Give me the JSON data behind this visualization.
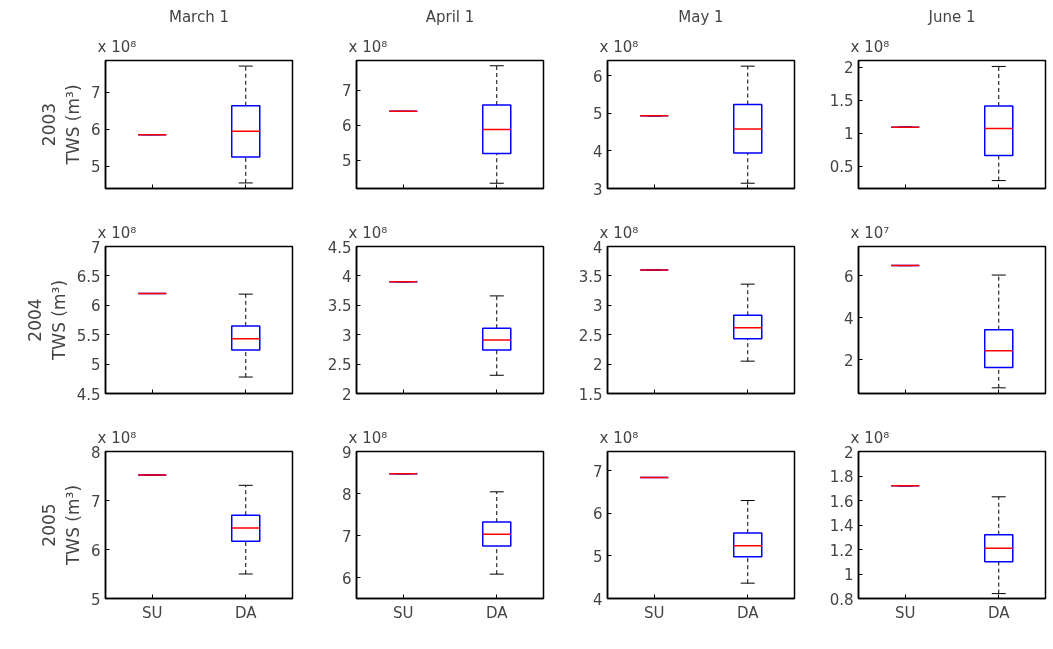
{
  "chart_data": [
    {
      "type": "box",
      "title": "March 1",
      "ylabel": "2003\nTWS (m³)",
      "annotations": [
        "x 10⁸"
      ],
      "categories": [
        null,
        null
      ],
      "tick_labels": "y",
      "ylim": [
        4.4,
        7.85
      ],
      "yticks": [
        5,
        6,
        7
      ],
      "series": [
        {
          "color": "#0000ff",
          "boxes": [
            {
              "low": 5.85,
              "q1": 5.85,
              "median": 5.85,
              "q3": 5.85,
              "high": 5.85
            },
            {
              "low": 4.55,
              "q1": 5.25,
              "median": 5.94,
              "q3": 6.63,
              "high": 7.7
            }
          ]
        }
      ]
    },
    {
      "type": "box",
      "title": "April 1",
      "annotations": [
        "x 10⁸"
      ],
      "categories": [
        null,
        null
      ],
      "tick_labels": "y",
      "ylim": [
        4.2,
        7.85
      ],
      "yticks": [
        5,
        6,
        7
      ],
      "series": [
        {
          "color": "#0000ff",
          "boxes": [
            {
              "low": 6.4,
              "q1": 6.4,
              "median": 6.4,
              "q3": 6.4,
              "high": 6.4
            },
            {
              "low": 4.35,
              "q1": 5.2,
              "median": 5.88,
              "q3": 6.58,
              "high": 7.7
            }
          ]
        }
      ]
    },
    {
      "type": "box",
      "title": "May 1",
      "annotations": [
        "x 10⁸"
      ],
      "categories": [
        null,
        null
      ],
      "tick_labels": "y",
      "ylim": [
        3,
        6.4
      ],
      "yticks": [
        3,
        4,
        5,
        6
      ],
      "series": [
        {
          "color": "#0000ff",
          "boxes": [
            {
              "low": 4.93,
              "q1": 4.93,
              "median": 4.93,
              "q3": 4.93,
              "high": 4.93
            },
            {
              "low": 3.14,
              "q1": 3.94,
              "median": 4.58,
              "q3": 5.23,
              "high": 6.25
            }
          ]
        }
      ]
    },
    {
      "type": "box",
      "title": "June 1",
      "annotations": [
        "x 10⁸"
      ],
      "categories": [
        null,
        null
      ],
      "tick_labels": "y",
      "ylim": [
        0.16,
        2.1
      ],
      "yticks": [
        0.5,
        1,
        1.5,
        2
      ],
      "series": [
        {
          "color": "#0000ff",
          "boxes": [
            {
              "low": 1.09,
              "q1": 1.09,
              "median": 1.09,
              "q3": 1.09,
              "high": 1.09
            },
            {
              "low": 0.28,
              "q1": 0.66,
              "median": 1.07,
              "q3": 1.41,
              "high": 2.01
            }
          ]
        }
      ]
    },
    {
      "type": "box",
      "ylabel": "2004\nTWS (m³)",
      "annotations": [
        "x 10⁸"
      ],
      "categories": [
        null,
        null
      ],
      "tick_labels": "y",
      "ylim": [
        4.5,
        7
      ],
      "yticks": [
        4.5,
        5,
        5.5,
        6,
        6.5,
        7
      ],
      "series": [
        {
          "color": "#0000ff",
          "boxes": [
            {
              "low": 6.2,
              "q1": 6.2,
              "median": 6.2,
              "q3": 6.2,
              "high": 6.2
            },
            {
              "low": 4.78,
              "q1": 5.24,
              "median": 5.43,
              "q3": 5.65,
              "high": 6.19
            }
          ]
        }
      ]
    },
    {
      "type": "box",
      "annotations": [
        "x 10⁸"
      ],
      "categories": [
        null,
        null
      ],
      "tick_labels": "y",
      "ylim": [
        2,
        4.5
      ],
      "yticks": [
        2,
        2.5,
        3,
        3.5,
        4,
        4.5
      ],
      "series": [
        {
          "color": "#0000ff",
          "boxes": [
            {
              "low": 3.9,
              "q1": 3.9,
              "median": 3.9,
              "q3": 3.9,
              "high": 3.9
            },
            {
              "low": 2.31,
              "q1": 2.74,
              "median": 2.91,
              "q3": 3.11,
              "high": 3.66
            }
          ]
        }
      ]
    },
    {
      "type": "box",
      "annotations": [
        "x 10⁸"
      ],
      "categories": [
        null,
        null
      ],
      "tick_labels": "y",
      "ylim": [
        1.5,
        4
      ],
      "yticks": [
        1.5,
        2,
        2.5,
        3,
        3.5,
        4
      ],
      "series": [
        {
          "color": "#0000ff",
          "boxes": [
            {
              "low": 3.6,
              "q1": 3.6,
              "median": 3.6,
              "q3": 3.6,
              "high": 3.6
            },
            {
              "low": 2.05,
              "q1": 2.43,
              "median": 2.62,
              "q3": 2.83,
              "high": 3.36
            }
          ]
        }
      ]
    },
    {
      "type": "box",
      "annotations": [
        "x 10⁷"
      ],
      "categories": [
        null,
        null
      ],
      "tick_labels": "y",
      "ylim": [
        0.4,
        7.4
      ],
      "yticks": [
        2,
        4,
        6
      ],
      "series": [
        {
          "color": "#0000ff",
          "boxes": [
            {
              "low": 6.49,
              "q1": 6.49,
              "median": 6.49,
              "q3": 6.49,
              "high": 6.49
            },
            {
              "low": 0.67,
              "q1": 1.64,
              "median": 2.43,
              "q3": 3.44,
              "high": 6.04
            }
          ]
        }
      ]
    },
    {
      "type": "box",
      "ylabel": "2005\nTWS (m³)",
      "annotations": [
        "x 10⁸"
      ],
      "categories": [
        "SU",
        "DA"
      ],
      "ylim": [
        5,
        8
      ],
      "yticks": [
        5,
        6,
        7,
        8
      ],
      "series": [
        {
          "color": "#0000ff",
          "boxes": [
            {
              "low": 7.52,
              "q1": 7.52,
              "median": 7.52,
              "q3": 7.52,
              "high": 7.52
            },
            {
              "low": 5.5,
              "q1": 6.17,
              "median": 6.44,
              "q3": 6.7,
              "high": 7.31
            }
          ]
        }
      ]
    },
    {
      "type": "box",
      "annotations": [
        "x 10⁸"
      ],
      "categories": [
        "SU",
        "DA"
      ],
      "ylim": [
        5.5,
        9
      ],
      "yticks": [
        6,
        7,
        8,
        9
      ],
      "series": [
        {
          "color": "#0000ff",
          "boxes": [
            {
              "low": 8.47,
              "q1": 8.47,
              "median": 8.47,
              "q3": 8.47,
              "high": 8.47
            },
            {
              "low": 6.08,
              "q1": 6.75,
              "median": 7.03,
              "q3": 7.32,
              "high": 8.04
            }
          ]
        }
      ]
    },
    {
      "type": "box",
      "annotations": [
        "x 10⁸"
      ],
      "categories": [
        "SU",
        "DA"
      ],
      "ylim": [
        4,
        7.45
      ],
      "yticks": [
        4,
        5,
        6,
        7
      ],
      "series": [
        {
          "color": "#0000ff",
          "boxes": [
            {
              "low": 6.84,
              "q1": 6.84,
              "median": 6.84,
              "q3": 6.84,
              "high": 6.84
            },
            {
              "low": 4.36,
              "q1": 4.98,
              "median": 5.24,
              "q3": 5.54,
              "high": 6.3
            }
          ]
        }
      ]
    },
    {
      "type": "box",
      "annotations": [
        "x 10⁸"
      ],
      "categories": [
        "SU",
        "DA"
      ],
      "ylim": [
        0.8,
        2
      ],
      "yticks": [
        0.8,
        1,
        1.2,
        1.4,
        1.6,
        1.8,
        2
      ],
      "series": [
        {
          "color": "#0000ff",
          "boxes": [
            {
              "low": 1.72,
              "q1": 1.72,
              "median": 1.72,
              "q3": 1.72,
              "high": 1.72
            },
            {
              "low": 0.84,
              "q1": 1.1,
              "median": 1.21,
              "q3": 1.32,
              "high": 1.63
            }
          ]
        }
      ]
    }
  ]
}
